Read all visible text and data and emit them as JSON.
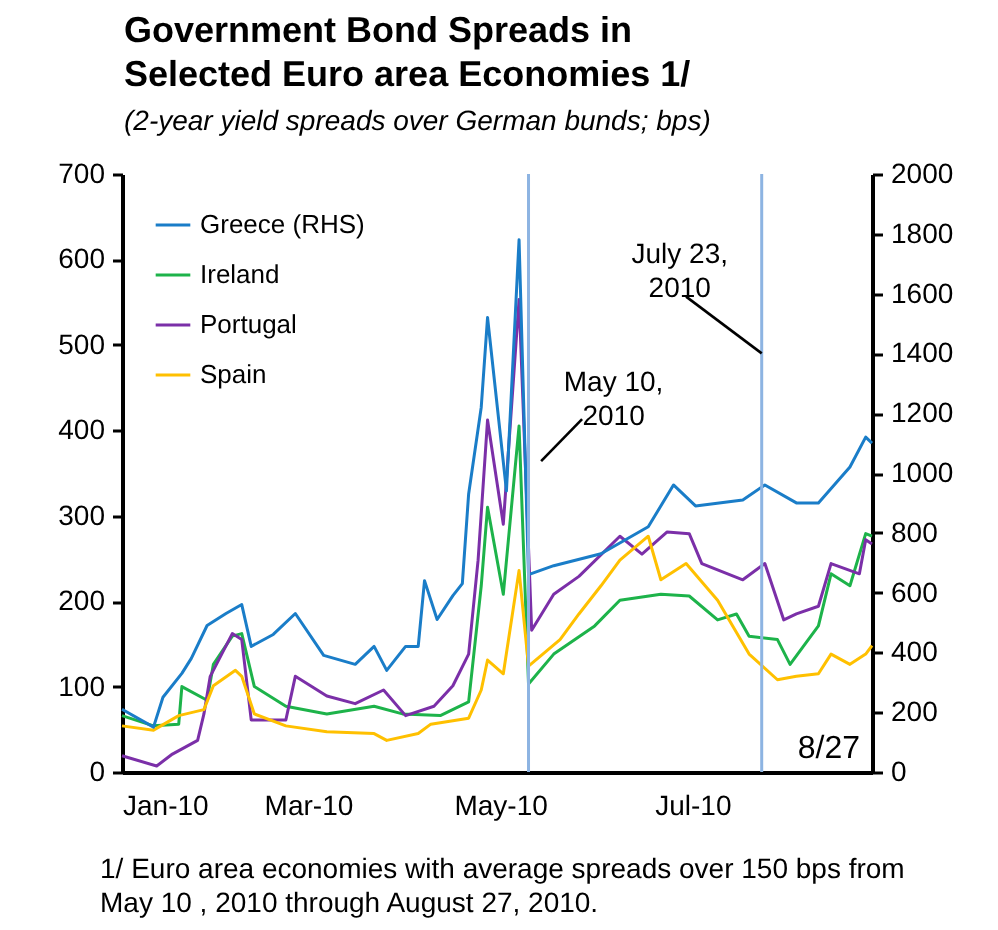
{
  "chart_data": {
    "type": "line",
    "title": "Government Bond Spreads in Selected Euro area Economies 1/",
    "subtitle": "(2-year yield spreads over German bunds; bps)",
    "series": [
      {
        "name": "Greece (RHS)",
        "color": "#1a7dc8",
        "axis": "y2",
        "x": [
          "2010-01-01",
          "2010-01-11",
          "2010-01-14",
          "2010-01-20",
          "2010-01-23",
          "2010-01-28",
          "2010-02-03",
          "2010-02-08",
          "2010-02-11",
          "2010-02-18",
          "2010-02-25",
          "2010-03-06",
          "2010-03-16",
          "2010-03-22",
          "2010-03-26",
          "2010-04-01",
          "2010-04-05",
          "2010-04-07",
          "2010-04-11",
          "2010-04-16",
          "2010-04-19",
          "2010-04-21",
          "2010-04-25",
          "2010-04-27",
          "2010-05-03",
          "2010-05-07",
          "2010-05-10",
          "2010-05-18",
          "2010-06-02",
          "2010-06-17",
          "2010-06-25",
          "2010-07-02",
          "2010-07-17",
          "2010-07-24",
          "2010-08-03",
          "2010-08-10",
          "2010-08-20",
          "2010-08-25",
          "2010-08-27"
        ],
        "values": [
          210,
          150,
          250,
          330,
          380,
          490,
          530,
          560,
          420,
          460,
          530,
          390,
          360,
          420,
          340,
          420,
          420,
          640,
          510,
          590,
          630,
          930,
          1220,
          1520,
          940,
          1780,
          660,
          690,
          730,
          820,
          960,
          890,
          910,
          960,
          900,
          900,
          1020,
          1120,
          1100
        ]
      },
      {
        "name": "Ireland",
        "color": "#1db34a",
        "x": [
          "2010-01-01",
          "2010-01-11",
          "2010-01-19",
          "2010-01-20",
          "2010-01-28",
          "2010-01-30",
          "2010-02-05",
          "2010-02-08",
          "2010-02-12",
          "2010-02-22",
          "2010-03-07",
          "2010-03-22",
          "2010-03-31",
          "2010-04-12",
          "2010-04-21",
          "2010-04-25",
          "2010-04-27",
          "2010-05-02",
          "2010-05-07",
          "2010-05-10",
          "2010-05-18",
          "2010-05-31",
          "2010-06-08",
          "2010-06-21",
          "2010-06-30",
          "2010-07-09",
          "2010-07-15",
          "2010-07-19",
          "2010-07-28",
          "2010-08-01",
          "2010-08-10",
          "2010-08-14",
          "2010-08-20",
          "2010-08-25",
          "2010-08-27"
        ],
        "values": [
          66,
          54,
          56,
          100,
          84,
          126,
          159,
          162,
          100,
          77,
          68,
          77,
          68,
          66,
          82,
          218,
          310,
          208,
          405,
          103,
          138,
          171,
          201,
          208,
          206,
          178,
          185,
          159,
          155,
          126,
          171,
          232,
          218,
          279,
          276
        ]
      },
      {
        "name": "Portugal",
        "color": "#7b2fa8",
        "x": [
          "2010-01-01",
          "2010-01-12",
          "2010-01-17",
          "2010-01-25",
          "2010-01-27",
          "2010-01-29",
          "2010-02-05",
          "2010-02-08",
          "2010-02-11",
          "2010-02-22",
          "2010-02-25",
          "2010-03-07",
          "2010-03-16",
          "2010-03-25",
          "2010-04-01",
          "2010-04-10",
          "2010-04-16",
          "2010-04-21",
          "2010-04-24",
          "2010-04-27",
          "2010-05-02",
          "2010-05-07",
          "2010-05-11",
          "2010-05-18",
          "2010-05-26",
          "2010-06-08",
          "2010-06-15",
          "2010-06-23",
          "2010-06-30",
          "2010-07-04",
          "2010-07-17",
          "2010-07-24",
          "2010-07-30",
          "2010-08-03",
          "2010-08-10",
          "2010-08-14",
          "2010-08-23",
          "2010-08-25",
          "2010-08-27"
        ],
        "values": [
          19,
          7,
          21,
          37,
          68,
          112,
          162,
          155,
          61,
          61,
          112,
          89,
          80,
          96,
          66,
          77,
          101,
          138,
          248,
          412,
          290,
          553,
          166,
          208,
          229,
          276,
          255,
          281,
          279,
          244,
          225,
          244,
          178,
          185,
          194,
          244,
          232,
          272,
          267
        ]
      },
      {
        "name": "Spain",
        "color": "#ffc000",
        "x": [
          "2010-01-01",
          "2010-01-11",
          "2010-01-19",
          "2010-01-27",
          "2010-01-30",
          "2010-02-06",
          "2010-02-08",
          "2010-02-12",
          "2010-02-22",
          "2010-03-07",
          "2010-03-22",
          "2010-03-26",
          "2010-04-05",
          "2010-04-09",
          "2010-04-21",
          "2010-04-25",
          "2010-04-27",
          "2010-05-02",
          "2010-05-07",
          "2010-05-10",
          "2010-05-20",
          "2010-05-26",
          "2010-06-02",
          "2010-06-08",
          "2010-06-17",
          "2010-06-21",
          "2010-06-29",
          "2010-07-09",
          "2010-07-19",
          "2010-07-28",
          "2010-08-03",
          "2010-08-10",
          "2010-08-14",
          "2010-08-20",
          "2010-08-25",
          "2010-08-27"
        ],
        "values": [
          54,
          49,
          66,
          73,
          101,
          119,
          112,
          68,
          54,
          47,
          45,
          37,
          45,
          56,
          63,
          96,
          131,
          115,
          236,
          124,
          155,
          185,
          218,
          248,
          276,
          225,
          244,
          201,
          138,
          108,
          112,
          115,
          138,
          126,
          138,
          148
        ]
      }
    ],
    "xlim": [
      "2010-01-01",
      "2010-08-27"
    ],
    "xticks": [
      {
        "value": "2010-01-01",
        "label": "Jan-10"
      },
      {
        "value": "2010-03-01",
        "label": "Mar-10"
      },
      {
        "value": "2010-05-01",
        "label": "May-10"
      },
      {
        "value": "2010-07-01",
        "label": "Jul-10"
      }
    ],
    "ylim": [
      0,
      700
    ],
    "yticks": [
      0,
      100,
      200,
      300,
      400,
      500,
      600,
      700
    ],
    "y2lim": [
      0,
      2000
    ],
    "y2ticks": [
      0,
      200,
      400,
      600,
      800,
      1000,
      1200,
      1400,
      1600,
      1800,
      2000
    ],
    "ref_lines": [
      {
        "axis": "x",
        "value": "2010-05-10",
        "label": "May 10, 2010",
        "color": "#8db4e2"
      },
      {
        "axis": "x",
        "value": "2010-07-23",
        "label": "July 23, 2010",
        "color": "#8db4e2"
      }
    ],
    "annotations": [
      "8/27",
      "1/ Euro area economies with average spreads over 150 bps from May 10 , 2010 through August 27, 2010."
    ],
    "legend": "top left",
    "grid": false,
    "marker": "none",
    "line_style": "solid"
  }
}
